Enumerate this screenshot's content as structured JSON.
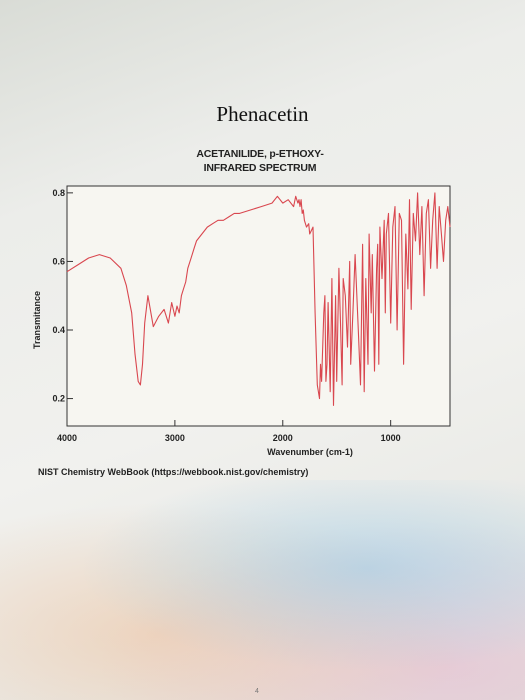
{
  "page": {
    "title": "Phenacetin",
    "source_note": "NIST Chemistry WebBook (https://webbook.nist.gov/chemistry)",
    "page_number": "4"
  },
  "chart_data": {
    "type": "line",
    "title_lines": [
      "ACETANILIDE, p-ETHOXY-",
      "INFRARED SPECTRUM"
    ],
    "xlabel": "Wavenumber (cm-1)",
    "ylabel": "Transmitance",
    "xlim": [
      4000,
      450
    ],
    "ylim": [
      0.12,
      0.82
    ],
    "x_ticks": [
      4000,
      3000,
      2000,
      1000
    ],
    "x_tick_labels": [
      "4000",
      "3000",
      "2000",
      "1000"
    ],
    "y_ticks": [
      0.2,
      0.4,
      0.6,
      0.8
    ],
    "y_tick_labels": [
      "0.2",
      "0.4",
      "0.6",
      "0.8"
    ],
    "line_color": "#d9474f",
    "series": [
      {
        "x": [
          4000,
          3900,
          3800,
          3700,
          3600,
          3500,
          3450,
          3400,
          3370,
          3340,
          3320,
          3300,
          3280,
          3250,
          3200,
          3150,
          3100,
          3060,
          3030,
          3000,
          2980,
          2960,
          2940,
          2920,
          2900,
          2880,
          2850,
          2820,
          2800,
          2750,
          2700,
          2650,
          2600,
          2550,
          2500,
          2450,
          2400,
          2300,
          2200,
          2100,
          2050,
          2000,
          1950,
          1900,
          1880,
          1860,
          1850,
          1840,
          1830,
          1820,
          1810,
          1800,
          1780,
          1760,
          1750,
          1720,
          1700,
          1680,
          1660,
          1650,
          1640,
          1620,
          1610,
          1600,
          1590,
          1580,
          1560,
          1545,
          1530,
          1510,
          1500,
          1480,
          1465,
          1450,
          1440,
          1420,
          1400,
          1380,
          1370,
          1350,
          1330,
          1300,
          1280,
          1260,
          1245,
          1230,
          1210,
          1200,
          1180,
          1170,
          1150,
          1130,
          1120,
          1110,
          1100,
          1080,
          1060,
          1050,
          1040,
          1020,
          1000,
          980,
          960,
          940,
          920,
          900,
          880,
          860,
          840,
          825,
          810,
          790,
          770,
          750,
          730,
          710,
          690,
          670,
          650,
          630,
          610,
          590,
          570,
          550,
          530,
          510,
          490,
          470,
          450
        ],
        "y": [
          0.57,
          0.59,
          0.61,
          0.62,
          0.61,
          0.58,
          0.53,
          0.45,
          0.33,
          0.25,
          0.24,
          0.3,
          0.42,
          0.5,
          0.41,
          0.44,
          0.46,
          0.42,
          0.48,
          0.44,
          0.47,
          0.45,
          0.5,
          0.52,
          0.54,
          0.58,
          0.61,
          0.64,
          0.66,
          0.68,
          0.7,
          0.71,
          0.72,
          0.72,
          0.73,
          0.74,
          0.74,
          0.75,
          0.76,
          0.77,
          0.79,
          0.77,
          0.78,
          0.76,
          0.79,
          0.77,
          0.78,
          0.76,
          0.78,
          0.74,
          0.75,
          0.72,
          0.7,
          0.71,
          0.68,
          0.7,
          0.45,
          0.24,
          0.2,
          0.3,
          0.25,
          0.45,
          0.5,
          0.25,
          0.3,
          0.48,
          0.22,
          0.55,
          0.18,
          0.5,
          0.25,
          0.58,
          0.42,
          0.24,
          0.55,
          0.5,
          0.35,
          0.6,
          0.3,
          0.45,
          0.62,
          0.4,
          0.24,
          0.65,
          0.22,
          0.55,
          0.3,
          0.68,
          0.45,
          0.62,
          0.28,
          0.58,
          0.65,
          0.3,
          0.7,
          0.55,
          0.72,
          0.45,
          0.68,
          0.74,
          0.42,
          0.7,
          0.76,
          0.4,
          0.74,
          0.72,
          0.3,
          0.68,
          0.52,
          0.78,
          0.46,
          0.74,
          0.66,
          0.8,
          0.62,
          0.76,
          0.5,
          0.74,
          0.78,
          0.58,
          0.72,
          0.8,
          0.58,
          0.76,
          0.68,
          0.6,
          0.72,
          0.76,
          0.7
        ]
      }
    ]
  }
}
